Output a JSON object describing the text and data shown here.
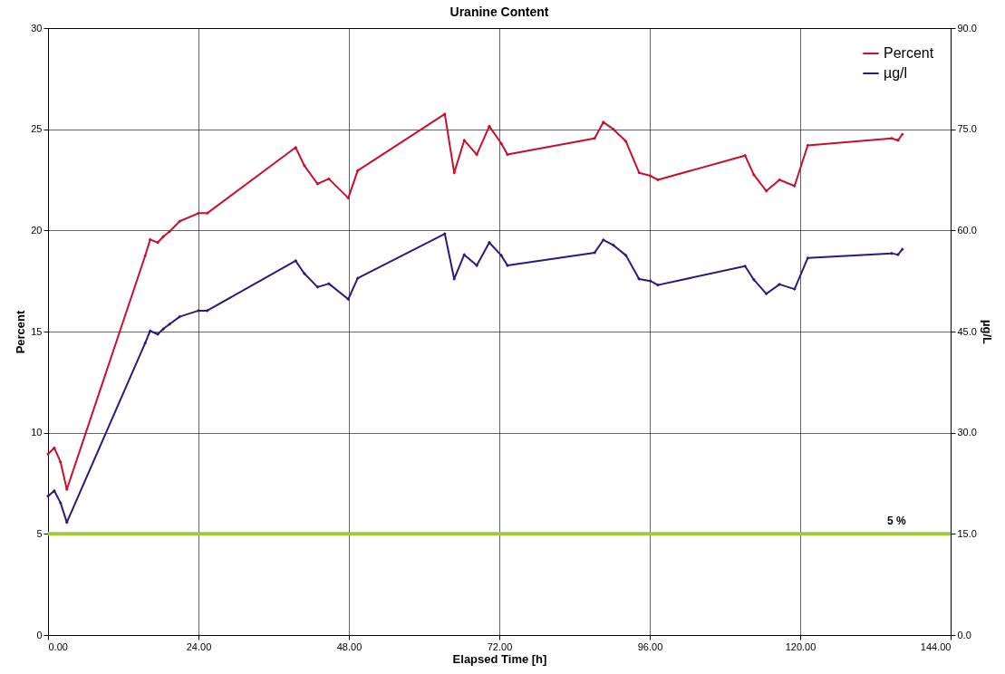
{
  "chart_data": {
    "type": "line",
    "title": "Uranine Content",
    "xlabel": "Elapsed Time [h]",
    "ylabel": "Percent",
    "y2label": "µg/L",
    "x": [
      0,
      1.0,
      2.0,
      3.0,
      15.5,
      16.3,
      17.5,
      18.4,
      19.4,
      21.0,
      24.0,
      25.4,
      39.5,
      40.9,
      43.0,
      44.8,
      47.9,
      49.4,
      63.3,
      64.8,
      66.4,
      68.4,
      70.4,
      72.3,
      73.3,
      87.2,
      88.6,
      90.2,
      92.2,
      94.3,
      96.1,
      97.3,
      111.2,
      112.6,
      114.6,
      116.7,
      119.1,
      121.2,
      134.6,
      135.6,
      136.3
    ],
    "series": [
      {
        "name": "Percent",
        "color": "#c8102e",
        "values": [
          8.95,
          9.25,
          8.55,
          7.2,
          18.75,
          19.55,
          19.4,
          19.7,
          19.95,
          20.45,
          20.85,
          20.85,
          24.1,
          23.2,
          22.3,
          22.55,
          21.6,
          22.95,
          25.75,
          22.85,
          24.45,
          23.75,
          25.15,
          24.3,
          23.75,
          24.55,
          25.35,
          25.0,
          24.4,
          22.85,
          22.7,
          22.5,
          23.7,
          22.75,
          21.95,
          22.5,
          22.2,
          24.2,
          24.55,
          24.45,
          24.75
        ]
      },
      {
        "name": "µg/l",
        "color": "#2e1a7a",
        "axis": "y2",
        "values": [
          20.6,
          21.4,
          19.6,
          16.7,
          43.3,
          45.1,
          44.6,
          45.4,
          46.1,
          47.2,
          48.1,
          48.1,
          55.5,
          53.6,
          51.6,
          52.1,
          49.8,
          52.9,
          59.5,
          52.8,
          56.4,
          54.8,
          58.2,
          56.3,
          54.8,
          56.7,
          58.6,
          57.8,
          56.3,
          52.8,
          52.5,
          51.9,
          54.7,
          52.7,
          50.6,
          52.0,
          51.3,
          55.9,
          56.6,
          56.4,
          57.2
        ]
      }
    ],
    "xlim": [
      0,
      144
    ],
    "xticks": [
      {
        "value": 0,
        "label": "0.00"
      },
      {
        "value": 24,
        "label": "24.00"
      },
      {
        "value": 48,
        "label": "48.00"
      },
      {
        "value": 72,
        "label": "72.00"
      },
      {
        "value": 96,
        "label": "96.00"
      },
      {
        "value": 120,
        "label": "120.00"
      },
      {
        "value": 144,
        "label": "144.00"
      }
    ],
    "ylim": [
      0,
      30
    ],
    "yticks": [
      0,
      5,
      10,
      15,
      20,
      25,
      30
    ],
    "y2lim": [
      0,
      90
    ],
    "y2ticks": [
      {
        "value": 0,
        "label": "0.0"
      },
      {
        "value": 15,
        "label": "15.0"
      },
      {
        "value": 30,
        "label": "30.0"
      },
      {
        "value": 45,
        "label": "45.0"
      },
      {
        "value": 60,
        "label": "60.0"
      },
      {
        "value": 75,
        "label": "75.0"
      },
      {
        "value": 90,
        "label": "90.0"
      }
    ],
    "ref_lines": [
      {
        "axis": "y",
        "value": 5,
        "label": "5 %",
        "color": "#a6c837"
      }
    ],
    "grid": true,
    "legend": "top right",
    "marker": "diamond",
    "line_style": "solid"
  }
}
